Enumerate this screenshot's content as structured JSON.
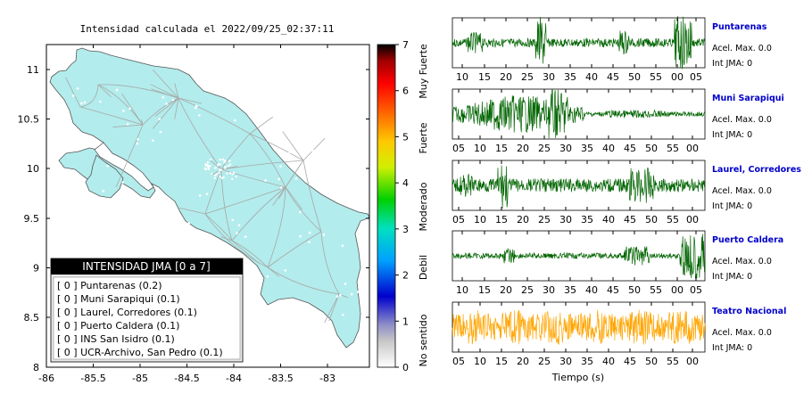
{
  "map": {
    "title": "Intensidad calculada el 2022/09/25_02:37:11",
    "x_ticks": [
      "-86",
      "-85.5",
      "-85",
      "-84.5",
      "-84",
      "-83.5",
      "-83"
    ],
    "y_ticks": [
      "11",
      "10.5",
      "10",
      "9.5",
      "9",
      "8.5",
      "8"
    ],
    "land_color": "#b3ecec",
    "legend": {
      "title": "INTENSIDAD JMA [0 a 7]",
      "entries": [
        "[ 0 ]  Puntarenas (0.2)",
        "[ 0 ]  Muni Sarapiqui (0.1)",
        "[ 0 ]  Laurel, Corredores (0.1)",
        "[ 0 ]  Puerto Caldera (0.1)",
        "[ 0 ]  INS San Isidro (0.1)",
        "[ 0 ]  UCR-Archivo, San Pedro (0.1)"
      ]
    }
  },
  "colorbar": {
    "ticks": [
      "0",
      "1",
      "2",
      "3",
      "4",
      "5",
      "6",
      "7"
    ],
    "labels": [
      "No sentido",
      "Debil",
      "Moderado",
      "Fuerte",
      "Muy Fuerte"
    ]
  },
  "traces": {
    "xlabel": "Tiempo (s)",
    "stations": [
      {
        "name": "Puntarenas",
        "acel": "Acel. Max. 0.0",
        "jma": "Int JMA: 0",
        "color": "#006400",
        "ticks": [
          "10",
          "15",
          "20",
          "25",
          "30",
          "35",
          "40",
          "45",
          "50",
          "55",
          "00",
          "05"
        ]
      },
      {
        "name": "Muni Sarapiqui",
        "acel": "Acel. Max. 0.0",
        "jma": "Int JMA: 0",
        "color": "#006400",
        "ticks": [
          "05",
          "10",
          "15",
          "20",
          "25",
          "30",
          "35",
          "40",
          "45",
          "50",
          "55",
          "00"
        ]
      },
      {
        "name": "Laurel, Corredores",
        "acel": "Acel. Max. 0.0",
        "jma": "Int JMA: 0",
        "color": "#006400",
        "ticks": [
          "05",
          "10",
          "15",
          "20",
          "25",
          "30",
          "35",
          "40",
          "45",
          "50",
          "55",
          "00"
        ]
      },
      {
        "name": "Puerto Caldera",
        "acel": "Acel. Max. 0.0",
        "jma": "Int JMA: 0",
        "color": "#006400",
        "ticks": [
          "10",
          "15",
          "20",
          "25",
          "30",
          "35",
          "40",
          "45",
          "50",
          "55",
          "00",
          "05"
        ]
      },
      {
        "name": "Teatro Nacional",
        "acel": "Acel. Max. 0.0",
        "jma": "Int JMA: 0",
        "color": "#ffa500",
        "ticks": [
          "05",
          "10",
          "15",
          "20",
          "25",
          "30",
          "35",
          "40",
          "45",
          "50",
          "55",
          "00"
        ]
      }
    ]
  },
  "chart_data": [
    {
      "type": "scatter",
      "title": "Intensidad calculada el 2022/09/25_02:37:11",
      "xlim": [
        -86,
        -82.6
      ],
      "ylim": [
        8,
        11.3
      ],
      "legend_placement": "bottom-left",
      "legend_title": "INTENSIDAD JMA [0 a 7]",
      "stations": [
        {
          "name": "Puntarenas",
          "intensity": 0,
          "value": 0.2
        },
        {
          "name": "Muni Sarapiqui",
          "intensity": 0,
          "value": 0.1
        },
        {
          "name": "Laurel, Corredores",
          "intensity": 0,
          "value": 0.1
        },
        {
          "name": "Puerto Caldera",
          "intensity": 0,
          "value": 0.1
        },
        {
          "name": "INS San Isidro",
          "intensity": 0,
          "value": 0.1
        },
        {
          "name": "UCR-Archivo, San Pedro",
          "intensity": 0,
          "value": 0.1
        }
      ],
      "colorbar_range": [
        0,
        7
      ]
    },
    {
      "type": "line",
      "xlabel": "Tiempo (s)",
      "series": [
        {
          "name": "Puntarenas",
          "acel_max": 0.0,
          "int_jma": 0
        },
        {
          "name": "Muni Sarapiqui",
          "acel_max": 0.0,
          "int_jma": 0
        },
        {
          "name": "Laurel, Corredores",
          "acel_max": 0.0,
          "int_jma": 0
        },
        {
          "name": "Puerto Caldera",
          "acel_max": 0.0,
          "int_jma": 0
        },
        {
          "name": "Teatro Nacional",
          "acel_max": 0.0,
          "int_jma": 0
        }
      ]
    }
  ]
}
